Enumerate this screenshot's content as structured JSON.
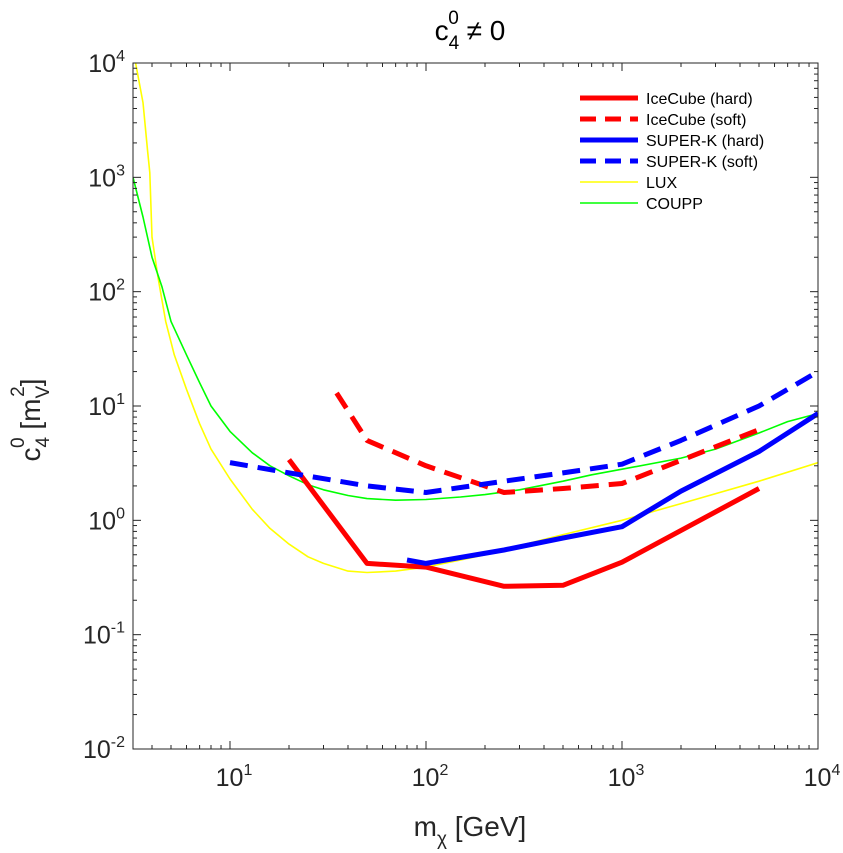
{
  "chart_data": {
    "type": "line",
    "title": {
      "base": "c",
      "sub": "4",
      "sup": "0",
      "tail": " ≠ 0"
    },
    "xlabel": {
      "base": "m",
      "sub": "χ",
      "tail": " [GeV]"
    },
    "ylabel": {
      "base": "c",
      "sub": "4",
      "sup": "0",
      "mid": " [m",
      "sub2": "V",
      "sup2": "2",
      "tail": "]"
    },
    "xscale": "log",
    "yscale": "log",
    "xlim": [
      3.2,
      10000
    ],
    "ylim": [
      0.01,
      10000
    ],
    "grid": false,
    "legend_position": "top-right",
    "x_ticks": [
      {
        "value": 10,
        "base": "10",
        "exp": "1"
      },
      {
        "value": 100,
        "base": "10",
        "exp": "2"
      },
      {
        "value": 1000,
        "base": "10",
        "exp": "3"
      },
      {
        "value": 10000,
        "base": "10",
        "exp": "4"
      }
    ],
    "y_ticks": [
      {
        "value": 0.01,
        "base": "10",
        "exp": "-2"
      },
      {
        "value": 0.1,
        "base": "10",
        "exp": "-1"
      },
      {
        "value": 1,
        "base": "10",
        "exp": "0"
      },
      {
        "value": 10,
        "base": "10",
        "exp": "1"
      },
      {
        "value": 100,
        "base": "10",
        "exp": "2"
      },
      {
        "value": 1000,
        "base": "10",
        "exp": "3"
      },
      {
        "value": 10000,
        "base": "10",
        "exp": "4"
      }
    ],
    "series": [
      {
        "name": "IceCube (hard)",
        "color": "#ff0000",
        "style": "solid",
        "weight": "thick",
        "x": [
          20,
          50,
          100,
          250,
          500,
          1000,
          5000
        ],
        "y": [
          3.4,
          0.42,
          0.39,
          0.265,
          0.27,
          0.43,
          1.9
        ]
      },
      {
        "name": "IceCube (soft)",
        "color": "#ff0000",
        "style": "dashed",
        "weight": "thick",
        "x": [
          35,
          50,
          100,
          250,
          500,
          1000,
          5000
        ],
        "y": [
          13,
          5,
          3,
          1.75,
          1.9,
          2.1,
          6.2
        ]
      },
      {
        "name": "SUPER-K (hard)",
        "color": "#0000ff",
        "style": "solid",
        "weight": "thick",
        "x": [
          80,
          100,
          250,
          500,
          1000,
          2000,
          5000,
          10000
        ],
        "y": [
          0.45,
          0.42,
          0.55,
          0.7,
          0.88,
          1.8,
          4.0,
          8.6
        ]
      },
      {
        "name": "SUPER-K (soft)",
        "color": "#0000ff",
        "style": "dashed",
        "weight": "thick",
        "x": [
          10,
          20,
          50,
          100,
          250,
          500,
          1000,
          2000,
          5000,
          10000
        ],
        "y": [
          3.2,
          2.6,
          2.0,
          1.75,
          2.2,
          2.6,
          3.1,
          5.0,
          10,
          20
        ]
      },
      {
        "name": "LUX",
        "color": "#ffff00",
        "style": "solid",
        "weight": "thin",
        "x": [
          3.3,
          3.6,
          3.8,
          3.9,
          4.0,
          4.3,
          4.7,
          5.2,
          6,
          7,
          8,
          10,
          13,
          16,
          20,
          25,
          30,
          40,
          50,
          70,
          100,
          150,
          200,
          300,
          500,
          1000,
          2000,
          5000,
          10000
        ],
        "y": [
          10000,
          4500,
          1700,
          1100,
          300,
          130,
          55,
          28,
          14,
          7,
          4.2,
          2.3,
          1.25,
          0.85,
          0.62,
          0.48,
          0.42,
          0.36,
          0.35,
          0.36,
          0.39,
          0.45,
          0.5,
          0.6,
          0.75,
          1.0,
          1.4,
          2.2,
          3.2
        ]
      },
      {
        "name": "COUPP",
        "color": "#00ff00",
        "style": "solid",
        "weight": "thin",
        "x": [
          3.2,
          3.6,
          4.0,
          4.5,
          5.0,
          6,
          7,
          8,
          10,
          13,
          16,
          20,
          25,
          30,
          40,
          50,
          70,
          100,
          150,
          200,
          300,
          500,
          700,
          1000,
          2000,
          3000,
          5000,
          7000,
          10000
        ],
        "y": [
          1000,
          450,
          200,
          110,
          55,
          28,
          16,
          10,
          6,
          3.9,
          3.0,
          2.45,
          2.05,
          1.85,
          1.65,
          1.55,
          1.5,
          1.52,
          1.6,
          1.68,
          1.85,
          2.2,
          2.5,
          2.8,
          3.5,
          4.2,
          5.8,
          7.3,
          8.6
        ]
      }
    ]
  }
}
